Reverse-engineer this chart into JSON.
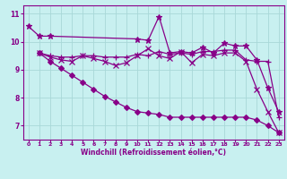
{
  "xlabel": "Windchill (Refroidissement éolien,°C)",
  "background_color": "#c8f0f0",
  "line_color": "#880088",
  "grid_color": "#a8d8d8",
  "xlim": [
    -0.5,
    23.5
  ],
  "ylim": [
    6.5,
    11.3
  ],
  "yticks": [
    7,
    8,
    9,
    10,
    11
  ],
  "xticks": [
    0,
    1,
    2,
    3,
    4,
    5,
    6,
    7,
    8,
    9,
    10,
    11,
    12,
    13,
    14,
    15,
    16,
    17,
    18,
    19,
    20,
    21,
    22,
    23
  ],
  "series": [
    {
      "x": [
        0,
        1,
        2,
        10,
        11,
        12,
        13,
        14,
        15,
        16,
        17,
        18,
        19,
        20,
        21,
        22,
        23
      ],
      "y": [
        10.55,
        10.2,
        10.2,
        10.1,
        10.05,
        10.9,
        9.6,
        9.65,
        9.6,
        9.8,
        9.6,
        9.95,
        9.85,
        9.85,
        9.35,
        8.35,
        7.5
      ]
    },
    {
      "x": [
        1,
        2,
        3,
        4,
        5,
        6,
        7,
        8,
        9,
        10,
        11,
        12,
        13,
        14,
        15,
        16,
        17,
        18,
        19,
        20,
        21,
        22,
        23
      ],
      "y": [
        9.6,
        9.5,
        9.45,
        9.45,
        9.5,
        9.5,
        9.45,
        9.45,
        9.45,
        9.55,
        9.5,
        9.65,
        9.55,
        9.6,
        9.55,
        9.65,
        9.65,
        9.7,
        9.7,
        9.35,
        9.3,
        9.3,
        7.3
      ]
    },
    {
      "x": [
        1,
        2,
        3,
        4,
        5,
        6,
        7,
        8,
        9,
        10,
        11,
        12,
        13,
        14,
        15,
        16,
        17,
        18,
        19,
        20,
        21,
        22,
        23
      ],
      "y": [
        9.6,
        9.45,
        9.35,
        9.3,
        9.5,
        9.4,
        9.3,
        9.15,
        9.25,
        9.5,
        9.75,
        9.5,
        9.4,
        9.65,
        9.25,
        9.55,
        9.5,
        9.6,
        9.6,
        9.3,
        8.3,
        7.5,
        6.75
      ]
    },
    {
      "x": [
        1,
        2,
        3,
        4,
        5,
        6,
        7,
        8,
        9,
        10,
        11,
        12,
        13,
        14,
        15,
        16,
        17,
        18,
        19,
        20,
        21,
        22,
        23
      ],
      "y": [
        9.6,
        9.3,
        9.05,
        8.8,
        8.55,
        8.3,
        8.05,
        7.85,
        7.65,
        7.5,
        7.45,
        7.4,
        7.3,
        7.3,
        7.3,
        7.3,
        7.3,
        7.3,
        7.3,
        7.3,
        7.2,
        7.0,
        6.75
      ]
    }
  ]
}
